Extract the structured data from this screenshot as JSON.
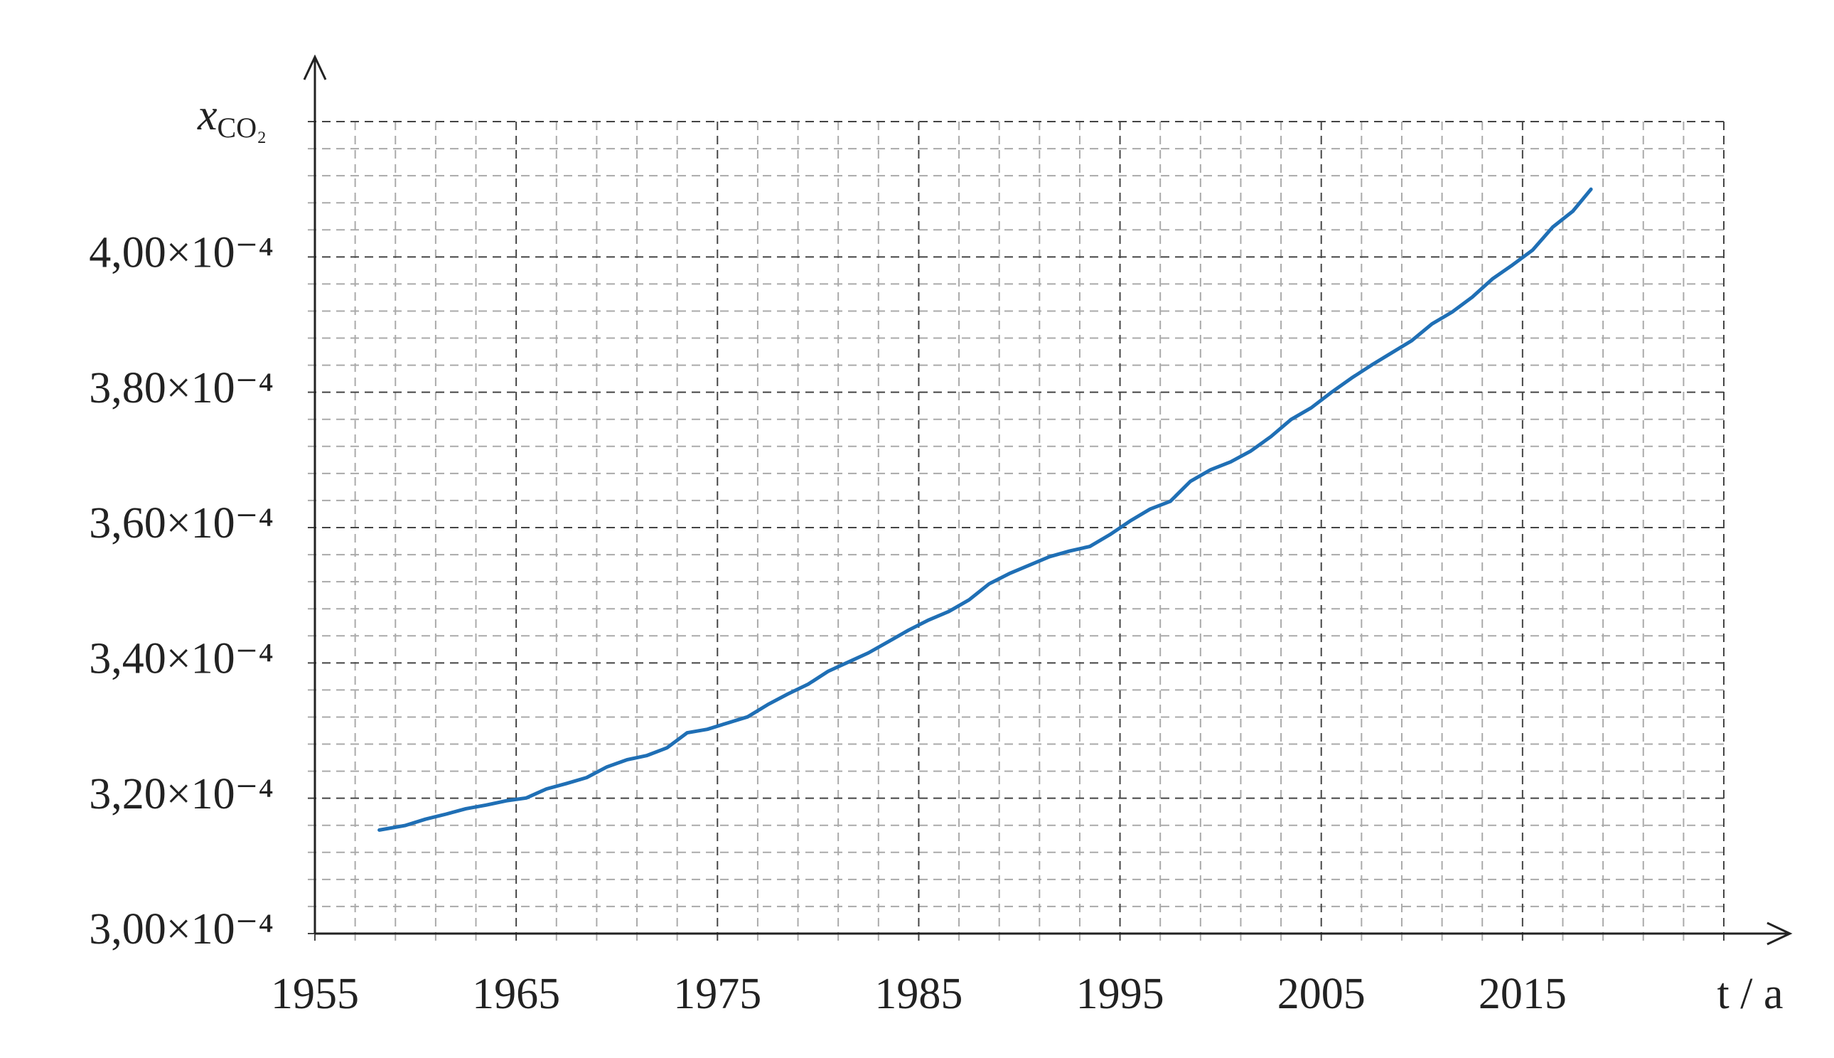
{
  "chart_data": {
    "type": "line",
    "ylabel": {
      "symbol": "x",
      "subscript": "CO₂"
    },
    "xlabel": "t / a",
    "xlim": [
      1955,
      2025
    ],
    "xticks": [
      1955,
      1965,
      1975,
      1985,
      1995,
      2005,
      2015
    ],
    "xminor": [
      1957,
      1959,
      1961,
      1963,
      1967,
      1969,
      1971,
      1973,
      1977,
      1979,
      1981,
      1983,
      1987,
      1989,
      1991,
      1993,
      1997,
      1999,
      2001,
      2003,
      2007,
      2009,
      2011,
      2013,
      2017,
      2019,
      2021,
      2023
    ],
    "ylim": [
      0.0003,
      0.00042
    ],
    "yticks": [
      {
        "value": 0.0003,
        "label": "3,00×10⁻⁴"
      },
      {
        "value": 0.00032,
        "label": "3,20×10⁻⁴"
      },
      {
        "value": 0.00034,
        "label": "3,40×10⁻⁴"
      },
      {
        "value": 0.00036,
        "label": "3,60×10⁻⁴"
      },
      {
        "value": 0.00038,
        "label": "3,80×10⁻⁴"
      },
      {
        "value": 0.0004,
        "label": "4,00×10⁻⁴"
      }
    ],
    "yminor": [
      0.000304,
      0.000308,
      0.000312,
      0.000316,
      0.000324,
      0.000328,
      0.000332,
      0.000336,
      0.000344,
      0.000348,
      0.000352,
      0.000356,
      0.000364,
      0.000368,
      0.000372,
      0.000376,
      0.000384,
      0.000388,
      0.000392,
      0.000396,
      0.000404,
      0.000408,
      0.000412,
      0.000416
    ],
    "grid": true,
    "series": [
      {
        "color": "#1f6fb5",
        "x": [
          1958.2,
          1959.5,
          1960.5,
          1961.5,
          1962.5,
          1963.5,
          1964.5,
          1965.5,
          1966.5,
          1967.5,
          1968.5,
          1969.5,
          1970.5,
          1971.5,
          1972.5,
          1973.5,
          1974.5,
          1975.5,
          1976.5,
          1977.5,
          1978.5,
          1979.5,
          1980.5,
          1981.5,
          1982.5,
          1983.5,
          1984.5,
          1985.5,
          1986.5,
          1987.5,
          1988.5,
          1989.5,
          1990.5,
          1991.5,
          1992.5,
          1993.5,
          1994.5,
          1995.5,
          1996.5,
          1997.5,
          1998.5,
          1999.5,
          2000.5,
          2001.5,
          2002.5,
          2003.5,
          2004.5,
          2005.5,
          2006.5,
          2007.5,
          2008.5,
          2009.5,
          2010.5,
          2011.5,
          2012.5,
          2013.5,
          2014.5,
          2015.5,
          2016.5,
          2017.5,
          2018.4
        ],
        "values": [
          0.0003153,
          0.00031598,
          0.00031691,
          0.00031764,
          0.00031845,
          0.00031899,
          0.00031962,
          0.00032004,
          0.00032137,
          0.00032218,
          0.00032305,
          0.00032462,
          0.00032568,
          0.00032632,
          0.00032746,
          0.00032968,
          0.00033019,
          0.00033112,
          0.00033203,
          0.00033384,
          0.00033541,
          0.00033684,
          0.00033876,
          0.00034012,
          0.00034148,
          0.00034315,
          0.00034485,
          0.00034635,
          0.00034761,
          0.00034931,
          0.00035169,
          0.0003532,
          0.00035445,
          0.0003557,
          0.00035654,
          0.00035721,
          0.00035896,
          0.00036097,
          0.00036274,
          0.00036388,
          0.00036684,
          0.00036854,
          0.00036971,
          0.00037132,
          0.00037345,
          0.00037598,
          0.0003777,
          0.00037998,
          0.00038209,
          0.00038402,
          0.00038583,
          0.00038764,
          0.0003901,
          0.00039185,
          0.00039406,
          0.00039674,
          0.00039881,
          0.00040101,
          0.00040441,
          0.00040676,
          0.00041
        ]
      }
    ]
  }
}
